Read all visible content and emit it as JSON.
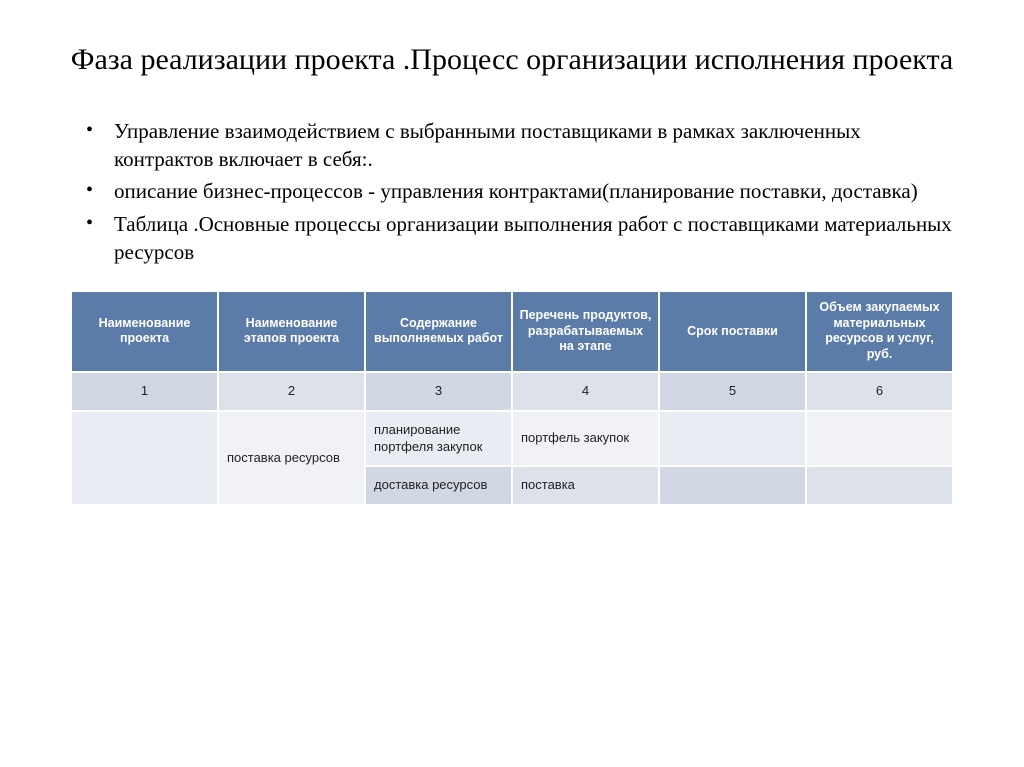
{
  "title": "Фаза реализации проекта .Процесс организации исполнения проекта",
  "bullets": [
    "Управление взаимодействием с выбранными поставщиками в рамках заключенных контрактов включает в себя:.",
    "описание бизнес-процессов - управления контрактами(планирование поставки, доставка)",
    " Таблица .Основные процессы организации выполнения работ с поставщиками  материальных ресурсов"
  ],
  "table": {
    "headers": [
      "Наименование проекта",
      "Наименование этапов проекта",
      "Содержание выполняемых работ",
      "Перечень продуктов, разрабатываемых на этапе",
      "Срок поставки",
      "Объем закупаемых материальных ресурсов и услуг, руб."
    ],
    "numrow": [
      "1",
      "2",
      "3",
      "4",
      "5",
      "6"
    ],
    "row1": {
      "c1": "",
      "c2": "             поставка ресурсов",
      "c3": "планирование портфеля закупок",
      "c4": "             портфель закупок",
      "c5": "",
      "c6": ""
    },
    "row2": {
      "c3": "доставка ресурсов",
      "c4": "поставка",
      "c5": "",
      "c6": ""
    },
    "colors": {
      "header_bg": "#5b7ba8",
      "header_fg": "#ffffff",
      "band_a": "#d2d8e3",
      "band_a_alt": "#dde2ea",
      "band_b": "#e9ecf2",
      "band_b_alt": "#f0f2f6",
      "border": "#ffffff"
    },
    "header_fontsize": 12.5,
    "cell_fontsize": 13,
    "col_count": 6
  }
}
